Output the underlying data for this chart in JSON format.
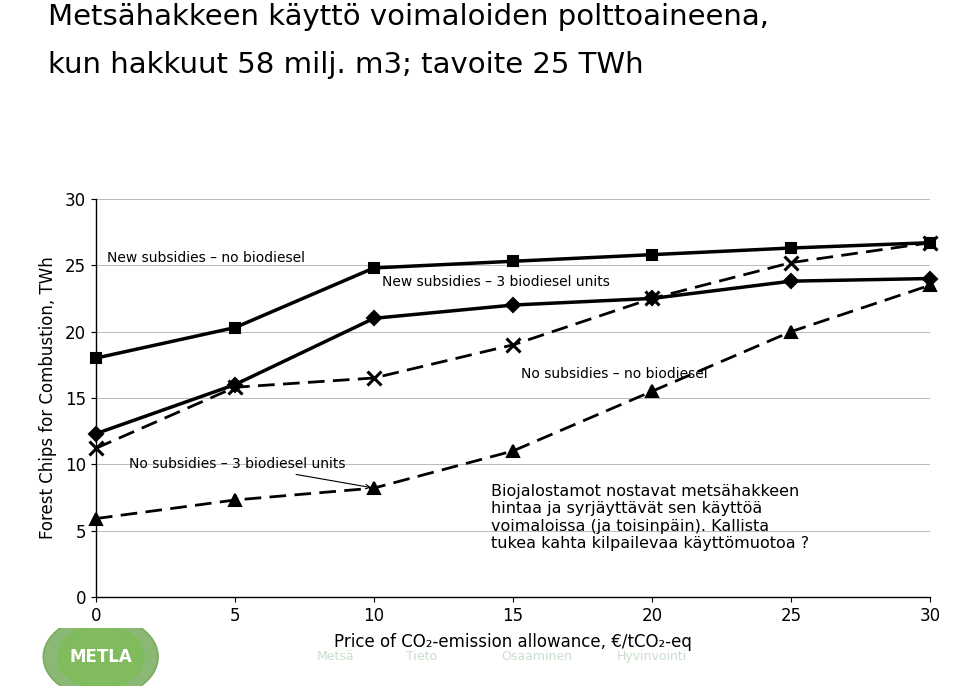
{
  "title_line1": "Metsähakkeen käyttö voimaloiden polttoaineena,",
  "title_line2": "kun hakkuut 58 milj. m3; tavoite 25 TWh",
  "xlabel": "Price of CO₂-emission allowance, €/tCO₂-eq",
  "ylabel": "Forest Chips for Combustion, TWh",
  "x": [
    0,
    5,
    10,
    15,
    20,
    25,
    30
  ],
  "series": [
    {
      "label": "New subsidies – no biodiesel",
      "y": [
        18.0,
        20.3,
        24.8,
        25.3,
        25.8,
        26.3,
        26.7
      ],
      "linestyle": "solid",
      "linewidth": 2.5,
      "marker": "s",
      "markersize": 7,
      "color": "#000000"
    },
    {
      "label": "New subsidies – 3 biodiesel units",
      "y": [
        12.3,
        16.0,
        21.0,
        22.0,
        22.5,
        23.8,
        24.0
      ],
      "linestyle": "solid",
      "linewidth": 2.5,
      "marker": "D",
      "markersize": 7,
      "color": "#000000"
    },
    {
      "label": "No subsidies – no biodiesel",
      "y": [
        11.2,
        15.8,
        16.5,
        19.0,
        22.5,
        25.2,
        26.7
      ],
      "linestyle": "dashed",
      "linewidth": 2.0,
      "marker": "x",
      "markersize": 10,
      "color": "#000000"
    },
    {
      "label": "No subsidies – 3 biodiesel units",
      "y": [
        5.9,
        7.3,
        8.2,
        11.0,
        15.5,
        20.0,
        23.5
      ],
      "linestyle": "dashed",
      "linewidth": 2.0,
      "marker": "^",
      "markersize": 8,
      "color": "#000000"
    }
  ],
  "annotation_text": "Biojalostamot nostavat metsähakkeen\nhintaa ja syrjäyttävät sen käyttöä\nvoimaloissa (ja toisinpäin). Kallista\ntukea kahta kilpailevaa käyttömuotoa ?",
  "xlim": [
    0,
    30
  ],
  "ylim": [
    0,
    30
  ],
  "xticks": [
    0,
    5,
    10,
    15,
    20,
    25,
    30
  ],
  "yticks": [
    0,
    5,
    10,
    15,
    20,
    25,
    30
  ],
  "background_color": "#ffffff",
  "footer_bg": "#3a6b2a",
  "title_fontsize": 21,
  "axis_label_fontsize": 12,
  "tick_fontsize": 12,
  "annotation_fontsize": 11.5,
  "series_label_fontsize": 10
}
